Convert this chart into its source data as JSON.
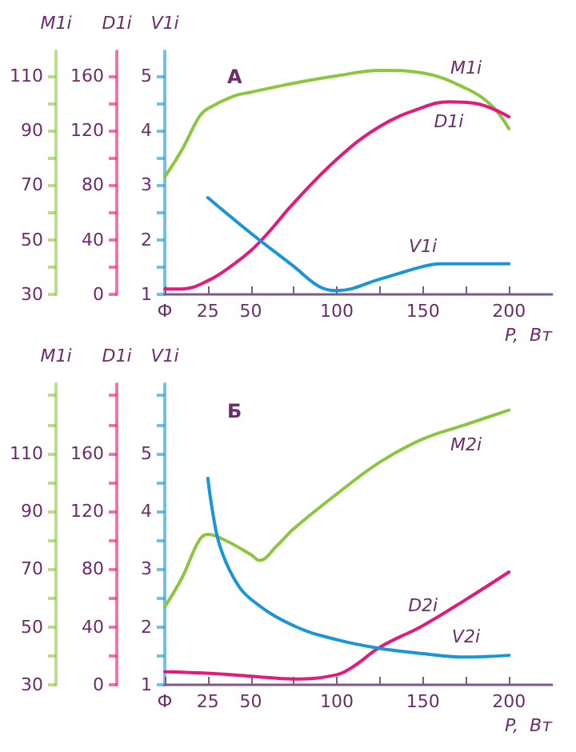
{
  "chart_data": [
    {
      "type": "line",
      "title": "A",
      "xlabel": "P,  Вт",
      "ylabel": "V1i",
      "y2label": "D1i",
      "y3label": "M1i",
      "marker": "none",
      "grid": false,
      "xlim": [
        0,
        225
      ],
      "xticks": [
        {
          "value": 0,
          "label": "Ф"
        },
        25,
        50,
        {
          "value": 75,
          "label": null
        },
        100,
        {
          "value": 125,
          "label": null
        },
        150,
        {
          "value": 175,
          "label": null
        },
        200
      ],
      "ylim": [
        1,
        5.45
      ],
      "yticks": [
        1,
        {
          "value": 1.5,
          "label": null
        },
        2,
        {
          "value": 2.5,
          "label": null
        },
        3,
        {
          "value": 3.5,
          "label": null
        },
        4,
        {
          "value": 4.5,
          "label": null
        },
        5
      ],
      "y2lim": [
        0,
        178
      ],
      "y2ticks": [
        0,
        {
          "value": 20,
          "label": null
        },
        40,
        {
          "value": 60,
          "label": null
        },
        80,
        {
          "value": 100,
          "label": null
        },
        120,
        {
          "value": 140,
          "label": null
        },
        160
      ],
      "y3lim": [
        30,
        119
      ],
      "y3ticks": [
        30,
        {
          "value": 40,
          "label": null
        },
        50,
        {
          "value": 60,
          "label": null
        },
        70,
        {
          "value": 80,
          "label": null
        },
        90,
        {
          "value": 100,
          "label": null
        },
        110
      ],
      "series": [
        {
          "name": "M1i",
          "color": "#8cc63f",
          "axis": "y3",
          "x": [
            0,
            10,
            20,
            25,
            40,
            50,
            75,
            100,
            125,
            150,
            175,
            190,
            200
          ],
          "values": [
            73,
            83,
            95,
            98,
            102.6,
            104,
            107.3,
            110,
            112,
            111,
            105.4,
            99,
            90.6
          ]
        },
        {
          "name": "D1i",
          "color": "#e5197a",
          "axis": "y2",
          "x": [
            0,
            10,
            25,
            40,
            50,
            60,
            75,
            100,
            125,
            150,
            165,
            180,
            200
          ],
          "values": [
            4,
            4,
            10,
            22,
            32,
            45,
            67,
            99,
            123,
            137,
            141,
            140,
            130
          ]
        },
        {
          "name": "V1i",
          "color": "#1a95d8",
          "x": [
            25,
            50,
            75,
            90,
            100,
            125,
            150,
            160,
            200
          ],
          "values": [
            2.77,
            2.12,
            1.51,
            1.14,
            1.07,
            1.28,
            1.51,
            1.56,
            1.56
          ]
        }
      ]
    },
    {
      "type": "line",
      "title": "Б",
      "xlabel": "P,  Вт",
      "ylabel": "V1i",
      "y2label": "D1i",
      "y3label": "M1i",
      "marker": "none",
      "grid": false,
      "xlim": [
        0,
        225
      ],
      "xticks": [
        {
          "value": 0,
          "label": "Ф"
        },
        25,
        50,
        {
          "value": 75,
          "label": null
        },
        100,
        {
          "value": 125,
          "label": null
        },
        150,
        {
          "value": 175,
          "label": null
        },
        200
      ],
      "ylim": [
        1,
        6.2
      ],
      "yticks": [
        1,
        {
          "value": 1.5,
          "label": null
        },
        2,
        {
          "value": 2.5,
          "label": null
        },
        3,
        {
          "value": 3.5,
          "label": null
        },
        4,
        {
          "value": 4.5,
          "label": null
        },
        5,
        {
          "value": 5.5,
          "label": null
        },
        {
          "value": 6,
          "label": null
        }
      ],
      "y2lim": [
        0,
        208
      ],
      "y2ticks": [
        0,
        {
          "value": 20,
          "label": null
        },
        40,
        {
          "value": 60,
          "label": null
        },
        80,
        {
          "value": 100,
          "label": null
        },
        120,
        {
          "value": 140,
          "label": null
        },
        160,
        {
          "value": 180,
          "label": null
        },
        {
          "value": 200,
          "label": null
        }
      ],
      "y3lim": [
        30,
        134
      ],
      "y3ticks": [
        30,
        {
          "value": 40,
          "label": null
        },
        50,
        {
          "value": 60,
          "label": null
        },
        70,
        {
          "value": 80,
          "label": null
        },
        90,
        {
          "value": 100,
          "label": null
        },
        110,
        {
          "value": 120,
          "label": null
        },
        {
          "value": 130,
          "label": null
        }
      ],
      "series": [
        {
          "name": "M2i",
          "color": "#8cc63f",
          "axis": "y3",
          "x": [
            0,
            10,
            20,
            25,
            35,
            50,
            55,
            65,
            75,
            100,
            125,
            150,
            175,
            200
          ],
          "values": [
            57,
            67,
            80,
            82,
            80,
            75,
            73,
            78,
            84,
            96,
            107,
            115,
            120,
            125
          ]
        },
        {
          "name": "D2i",
          "color": "#e5197a",
          "axis": "y2",
          "x": [
            0,
            25,
            50,
            75,
            100,
            110,
            125,
            150,
            175,
            200
          ],
          "values": [
            9,
            8,
            6,
            4,
            7,
            13,
            26,
            41,
            59,
            78
          ]
        },
        {
          "name": "V2i",
          "color": "#1a95d8",
          "x": [
            25,
            28,
            32,
            40,
            50,
            75,
            100,
            125,
            150,
            175,
            200
          ],
          "values": [
            4.57,
            3.95,
            3.4,
            2.85,
            2.48,
            2.02,
            1.78,
            1.63,
            1.54,
            1.48,
            1.51
          ]
        }
      ]
    }
  ]
}
